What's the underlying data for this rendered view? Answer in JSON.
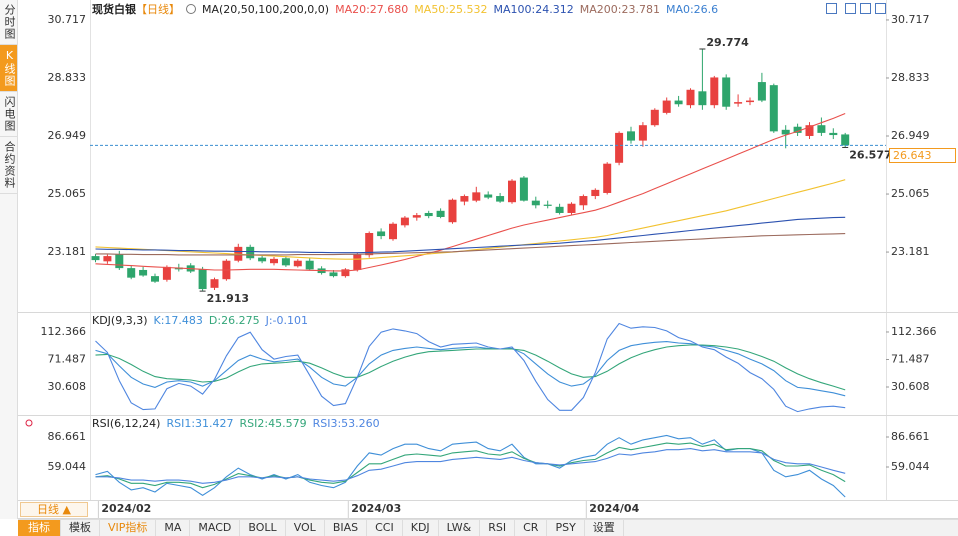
{
  "sidebar": [
    "分时图",
    "K线图",
    "闪电图",
    "合约资料"
  ],
  "chart_data": [
    {
      "type": "candlestick",
      "title": "现货白银",
      "subtitle": "【日线】",
      "indicator": "MA(20,50,100,200,0,0)",
      "categories": [
        null,
        "2024/02",
        null,
        null,
        null,
        null,
        null,
        null,
        null,
        null,
        null,
        null,
        null,
        null,
        null,
        null,
        null,
        null,
        null,
        null,
        null,
        null,
        "2024/03",
        null,
        null,
        null,
        null,
        null,
        null,
        null,
        null,
        null,
        null,
        null,
        null,
        null,
        null,
        null,
        null,
        null,
        null,
        null,
        "2024/04",
        null,
        null,
        null,
        null,
        null,
        null,
        null,
        null,
        null,
        null,
        null,
        null,
        null,
        null,
        null,
        null,
        null,
        null,
        null,
        null,
        null
      ],
      "open": [
        23.05,
        22.88,
        23.1,
        22.66,
        22.6,
        22.4,
        22.28,
        22.68,
        22.75,
        22.62,
        22.02,
        22.3,
        22.9,
        23.35,
        23.0,
        22.82,
        22.98,
        22.72,
        22.9,
        22.65,
        22.52,
        22.4,
        22.6,
        23.08,
        23.85,
        23.6,
        24.05,
        24.3,
        24.45,
        24.52,
        24.15,
        24.82,
        24.85,
        25.05,
        25.0,
        24.8,
        25.6,
        24.85,
        24.72,
        24.65,
        24.45,
        24.7,
        25.0,
        25.1,
        26.08,
        27.1,
        26.8,
        27.3,
        27.7,
        28.1,
        27.95,
        28.4,
        27.95,
        28.85,
        28.0,
        28.05,
        28.7,
        28.6,
        27.15,
        27.25,
        26.95,
        27.3,
        27.05,
        27.0
      ],
      "high": [
        23.12,
        23.1,
        23.22,
        22.75,
        22.7,
        22.48,
        22.75,
        22.8,
        22.82,
        22.7,
        22.35,
        22.95,
        23.45,
        23.42,
        23.1,
        23.02,
        23.05,
        22.95,
        22.98,
        22.72,
        22.6,
        22.66,
        23.15,
        23.85,
        23.95,
        24.15,
        24.35,
        24.45,
        24.52,
        24.6,
        24.92,
        25.05,
        25.3,
        25.15,
        25.1,
        25.55,
        25.65,
        24.98,
        24.85,
        24.75,
        24.8,
        25.05,
        25.25,
        26.1,
        27.1,
        27.25,
        27.4,
        27.85,
        28.2,
        28.25,
        28.5,
        29.774,
        28.9,
        28.95,
        28.3,
        28.2,
        29.0,
        28.65,
        27.3,
        27.35,
        27.4,
        27.55,
        27.2,
        27.05
      ],
      "low": [
        22.85,
        22.8,
        22.6,
        22.3,
        22.38,
        22.18,
        22.22,
        22.55,
        22.5,
        21.913,
        21.95,
        22.25,
        22.85,
        22.92,
        22.82,
        22.75,
        22.7,
        22.68,
        22.58,
        22.45,
        22.36,
        22.35,
        22.55,
        23.0,
        23.6,
        23.55,
        23.98,
        24.2,
        24.28,
        24.28,
        24.1,
        24.7,
        24.8,
        24.9,
        24.78,
        24.75,
        24.82,
        24.6,
        24.6,
        24.4,
        24.4,
        24.55,
        24.9,
        25.05,
        26.0,
        26.7,
        26.6,
        27.25,
        27.65,
        27.9,
        27.85,
        27.8,
        27.85,
        27.8,
        27.9,
        27.95,
        28.05,
        27.05,
        26.55,
        26.95,
        26.85,
        26.95,
        26.85,
        26.577
      ],
      "close": [
        22.92,
        23.05,
        22.66,
        22.35,
        22.42,
        22.22,
        22.7,
        22.62,
        22.55,
        21.98,
        22.3,
        22.9,
        23.35,
        22.98,
        22.88,
        22.96,
        22.75,
        22.9,
        22.62,
        22.5,
        22.4,
        22.62,
        23.1,
        23.8,
        23.7,
        24.1,
        24.3,
        24.38,
        24.35,
        24.32,
        24.88,
        25.0,
        25.12,
        24.95,
        24.82,
        25.5,
        24.85,
        24.7,
        24.68,
        24.45,
        24.75,
        25.0,
        25.2,
        26.05,
        27.05,
        26.8,
        27.3,
        27.8,
        28.1,
        27.98,
        28.45,
        27.95,
        28.85,
        27.9,
        28.05,
        28.1,
        28.1,
        27.1,
        27.0,
        27.05,
        27.3,
        27.05,
        26.98,
        26.643
      ],
      "up_color": "#e8413f",
      "down_color": "#2ea56c",
      "series": [
        {
          "name": "MA20:27.680",
          "color": "#e9504c",
          "values": [
            22.8,
            22.78,
            22.76,
            22.74,
            22.72,
            22.7,
            22.68,
            22.66,
            22.64,
            22.62,
            22.6,
            22.6,
            22.61,
            22.62,
            22.62,
            22.62,
            22.61,
            22.6,
            22.59,
            22.58,
            22.57,
            22.57,
            22.6,
            22.68,
            22.76,
            22.85,
            22.94,
            23.04,
            23.14,
            23.24,
            23.36,
            23.48,
            23.6,
            23.72,
            23.84,
            23.96,
            24.06,
            24.14,
            24.22,
            24.3,
            24.38,
            24.46,
            24.54,
            24.66,
            24.8,
            24.94,
            25.08,
            25.24,
            25.4,
            25.56,
            25.72,
            25.88,
            26.04,
            26.2,
            26.36,
            26.52,
            26.68,
            26.84,
            26.98,
            27.1,
            27.24,
            27.38,
            27.52,
            27.68
          ]
        },
        {
          "name": "MA50:25.532",
          "color": "#f2c230",
          "values": [
            23.35,
            23.33,
            23.31,
            23.29,
            23.27,
            23.25,
            23.23,
            23.21,
            23.19,
            23.17,
            23.15,
            23.13,
            23.11,
            23.09,
            23.07,
            23.05,
            23.03,
            23.01,
            22.99,
            22.97,
            22.96,
            22.95,
            22.95,
            22.97,
            23.0,
            23.03,
            23.06,
            23.09,
            23.12,
            23.15,
            23.18,
            23.22,
            23.26,
            23.3,
            23.34,
            23.38,
            23.42,
            23.46,
            23.5,
            23.54,
            23.58,
            23.62,
            23.66,
            23.72,
            23.8,
            23.88,
            23.96,
            24.04,
            24.12,
            24.2,
            24.28,
            24.36,
            24.44,
            24.52,
            24.62,
            24.72,
            24.82,
            24.92,
            25.02,
            25.12,
            25.22,
            25.32,
            25.42,
            25.53
          ]
        },
        {
          "name": "MA100:24.312",
          "color": "#2c52b0",
          "values": [
            23.28,
            23.27,
            23.27,
            23.26,
            23.25,
            23.25,
            23.24,
            23.23,
            23.23,
            23.22,
            23.21,
            23.21,
            23.2,
            23.2,
            23.19,
            23.19,
            23.18,
            23.18,
            23.17,
            23.17,
            23.16,
            23.16,
            23.16,
            23.17,
            23.18,
            23.19,
            23.21,
            23.23,
            23.25,
            23.27,
            23.29,
            23.31,
            23.33,
            23.35,
            23.37,
            23.39,
            23.41,
            23.43,
            23.45,
            23.47,
            23.5,
            23.53,
            23.56,
            23.6,
            23.64,
            23.68,
            23.72,
            23.76,
            23.8,
            23.84,
            23.88,
            23.92,
            23.96,
            24.0,
            24.04,
            24.08,
            24.12,
            24.16,
            24.2,
            24.24,
            24.26,
            24.28,
            24.3,
            24.31
          ]
        },
        {
          "name": "MA200:23.781",
          "color": "#9c6b5e",
          "values": [
            23.12,
            23.12,
            23.11,
            23.11,
            23.1,
            23.1,
            23.1,
            23.09,
            23.09,
            23.09,
            23.09,
            23.09,
            23.09,
            23.09,
            23.09,
            23.09,
            23.09,
            23.1,
            23.1,
            23.1,
            23.1,
            23.11,
            23.11,
            23.12,
            23.13,
            23.14,
            23.15,
            23.16,
            23.17,
            23.18,
            23.19,
            23.21,
            23.23,
            23.25,
            23.27,
            23.29,
            23.31,
            23.33,
            23.35,
            23.37,
            23.39,
            23.41,
            23.43,
            23.45,
            23.47,
            23.49,
            23.51,
            23.53,
            23.55,
            23.57,
            23.59,
            23.61,
            23.63,
            23.65,
            23.67,
            23.69,
            23.71,
            23.72,
            23.73,
            23.74,
            23.75,
            23.76,
            23.77,
            23.78
          ]
        }
      ],
      "ma0_label": "MA0:26.6",
      "ma0_color": "#3a7fd0",
      "last_price": 26.643,
      "last_price_color": "#3a8fd0",
      "annotations": [
        29.774,
        21.913,
        26.577
      ],
      "ylim": [
        21.3,
        31.04
      ],
      "yticks": [
        30.717,
        28.833,
        26.949,
        25.065,
        23.181
      ]
    },
    {
      "type": "line",
      "title": "KDJ(9,3,3)",
      "series": [
        {
          "name": "K:17.483",
          "color": "#3f8fd8",
          "values": [
            85,
            80,
            62,
            45,
            35,
            30,
            38,
            40,
            38,
            32,
            40,
            55,
            70,
            78,
            72,
            68,
            70,
            72,
            60,
            45,
            35,
            32,
            45,
            65,
            78,
            85,
            88,
            90,
            88,
            86,
            88,
            89,
            90,
            88,
            87,
            88,
            80,
            65,
            50,
            38,
            32,
            35,
            48,
            70,
            85,
            92,
            95,
            97,
            98,
            96,
            95,
            92,
            90,
            85,
            80,
            72,
            65,
            55,
            40,
            30,
            28,
            25,
            22,
            17.483
          ]
        },
        {
          "name": "D:26.275",
          "color": "#34a67a",
          "values": [
            78,
            79,
            73,
            64,
            54,
            46,
            43,
            42,
            41,
            38,
            39,
            44,
            53,
            61,
            65,
            66,
            67,
            69,
            66,
            59,
            51,
            45,
            45,
            52,
            61,
            69,
            75,
            80,
            83,
            84,
            85,
            86,
            87,
            87,
            87,
            87,
            85,
            78,
            69,
            59,
            50,
            45,
            46,
            54,
            65,
            74,
            81,
            86,
            90,
            92,
            93,
            93,
            92,
            90,
            87,
            82,
            76,
            69,
            59,
            50,
            43,
            37,
            32,
            26.275
          ]
        },
        {
          "name": "J:-0.101",
          "color": "#4f86e0",
          "values": [
            99,
            82,
            40,
            7,
            -3,
            -2,
            28,
            36,
            32,
            20,
            42,
            77,
            104,
            112,
            86,
            72,
            76,
            78,
            48,
            17,
            3,
            6,
            45,
            91,
            112,
            117,
            114,
            110,
            98,
            90,
            94,
            95,
            96,
            90,
            87,
            90,
            70,
            39,
            12,
            -4,
            -4,
            15,
            52,
            102,
            125,
            118,
            120,
            119,
            114,
            104,
            99,
            90,
            86,
            75,
            66,
            52,
            43,
            27,
            2,
            -6,
            -2,
            1,
            2,
            -0.101
          ]
        }
      ],
      "ylim": [
        -8.04,
        137.6
      ],
      "yticks": [
        112.366,
        71.487,
        30.608
      ]
    },
    {
      "type": "line",
      "title": "RSI(6,12,24)",
      "series": [
        {
          "name": "RSI1:31.427",
          "color": "#3f8fd8",
          "values": [
            52,
            55,
            45,
            38,
            40,
            36,
            44,
            42,
            40,
            33,
            40,
            50,
            58,
            52,
            48,
            52,
            48,
            52,
            45,
            42,
            40,
            45,
            60,
            72,
            70,
            76,
            80,
            80,
            76,
            74,
            80,
            81,
            82,
            76,
            74,
            80,
            68,
            62,
            62,
            58,
            65,
            68,
            70,
            80,
            86,
            80,
            84,
            86,
            88,
            85,
            86,
            80,
            84,
            74,
            76,
            76,
            72,
            56,
            50,
            52,
            56,
            48,
            42,
            31.427
          ]
        },
        {
          "name": "RSI2:45.579",
          "color": "#34a67a",
          "values": [
            50,
            51,
            48,
            44,
            44,
            42,
            45,
            45,
            44,
            40,
            43,
            48,
            53,
            51,
            49,
            51,
            49,
            50,
            47,
            45,
            44,
            46,
            54,
            62,
            62,
            66,
            70,
            71,
            70,
            69,
            72,
            73,
            74,
            71,
            70,
            73,
            67,
            63,
            62,
            60,
            63,
            65,
            66,
            72,
            77,
            75,
            77,
            79,
            81,
            80,
            81,
            78,
            80,
            75,
            76,
            76,
            74,
            65,
            60,
            60,
            61,
            56,
            52,
            45.579
          ]
        },
        {
          "name": "RSI3:53.260",
          "color": "#4f86e0",
          "values": [
            50,
            50,
            49,
            47,
            47,
            46,
            47,
            47,
            46,
            44,
            45,
            47,
            50,
            50,
            49,
            50,
            49,
            50,
            48,
            47,
            46,
            47,
            51,
            56,
            57,
            60,
            63,
            64,
            64,
            64,
            66,
            67,
            68,
            67,
            66,
            68,
            65,
            63,
            62,
            61,
            62,
            63,
            64,
            67,
            71,
            70,
            72,
            73,
            75,
            75,
            76,
            74,
            75,
            73,
            73,
            73,
            72,
            66,
            63,
            62,
            62,
            59,
            56,
            53.26
          ]
        }
      ],
      "ylim": [
        28.66,
        104.15
      ],
      "yticks": [
        86.661,
        59.044
      ]
    }
  ],
  "period_selector": "日线 ▲",
  "toolbar": [
    "指标",
    "模板",
    "VIP指标",
    "MA",
    "MACD",
    "BOLL",
    "VOL",
    "BIAS",
    "CCI",
    "KDJ",
    "LW&",
    "RSI",
    "CR",
    "PSY",
    "设置"
  ]
}
